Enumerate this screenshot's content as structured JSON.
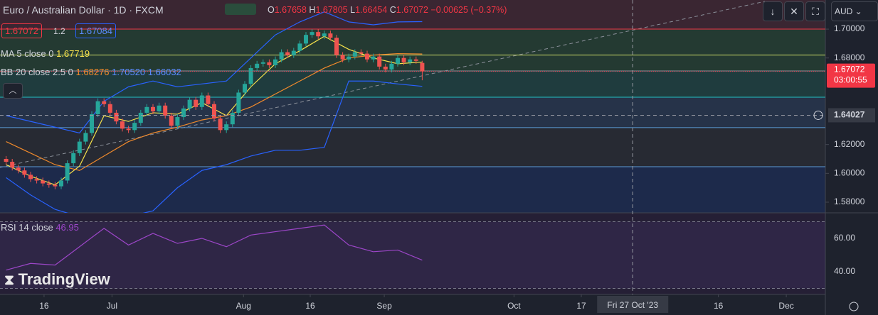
{
  "header": {
    "title": "Euro / Australian Dollar · 1D · FXCM",
    "o_label": "O",
    "o": "1.67658",
    "h_label": "H",
    "h": "1.67805",
    "l_label": "L",
    "l": "1.66454",
    "c_label": "C",
    "c": "1.67072",
    "change": "−0.00625 (−0.37%)",
    "bid": "1.67072",
    "spread": "1.2",
    "ask": "1.67084",
    "currency": "AUD"
  },
  "legend": {
    "ma_label": "MA 5 close 0",
    "ma_value": "1.67719",
    "bb_label": "BB 20 close 2.5 0",
    "bb_basis": "1.68276",
    "bb_upper": "1.70520",
    "bb_lower": "1.66032",
    "rsi_label": "RSI 14 close",
    "rsi_value": "46.95"
  },
  "brand": "TradingView",
  "chart_data": {
    "type": "candlestick",
    "xlim": [
      0,
      135
    ],
    "ylim": [
      1.5726,
      1.7202
    ],
    "open": [
      1.61,
      1.608,
      1.604,
      1.602,
      1.599,
      1.596,
      1.595,
      1.593,
      1.592,
      1.591,
      1.595,
      1.607,
      1.614,
      1.622,
      1.628,
      1.641,
      1.65,
      1.648,
      1.642,
      1.636,
      1.631,
      1.63,
      1.635,
      1.642,
      1.646,
      1.643,
      1.647,
      1.64,
      1.633,
      1.639,
      1.645,
      1.651,
      1.646,
      1.654,
      1.648,
      1.638,
      1.63,
      1.634,
      1.642,
      1.656,
      1.662,
      1.673,
      1.676,
      1.677,
      1.675,
      1.679,
      1.684,
      1.682,
      1.685,
      1.69,
      1.696,
      1.698,
      1.695,
      1.697,
      1.694,
      1.682,
      1.679,
      1.681,
      1.684,
      1.683,
      1.679,
      1.681,
      1.674,
      1.672,
      1.676,
      1.68,
      1.677,
      1.679,
      1.67658
    ],
    "high": [
      1.612,
      1.61,
      1.606,
      1.604,
      1.601,
      1.598,
      1.597,
      1.595,
      1.594,
      1.597,
      1.609,
      1.616,
      1.624,
      1.63,
      1.643,
      1.652,
      1.652,
      1.65,
      1.644,
      1.638,
      1.633,
      1.637,
      1.644,
      1.648,
      1.648,
      1.649,
      1.649,
      1.642,
      1.641,
      1.647,
      1.653,
      1.653,
      1.656,
      1.656,
      1.65,
      1.64,
      1.636,
      1.644,
      1.658,
      1.664,
      1.675,
      1.678,
      1.679,
      1.679,
      1.681,
      1.686,
      1.686,
      1.687,
      1.692,
      1.698,
      1.7,
      1.7,
      1.699,
      1.699,
      1.696,
      1.684,
      1.683,
      1.686,
      1.686,
      1.685,
      1.683,
      1.683,
      1.676,
      1.678,
      1.682,
      1.682,
      1.681,
      1.681,
      1.67805
    ],
    "low": [
      1.606,
      1.602,
      1.6,
      1.597,
      1.594,
      1.593,
      1.591,
      1.59,
      1.589,
      1.589,
      1.593,
      1.605,
      1.612,
      1.62,
      1.626,
      1.639,
      1.646,
      1.64,
      1.634,
      1.629,
      1.628,
      1.628,
      1.633,
      1.64,
      1.641,
      1.641,
      1.638,
      1.631,
      1.631,
      1.637,
      1.643,
      1.644,
      1.644,
      1.646,
      1.636,
      1.628,
      1.628,
      1.632,
      1.64,
      1.654,
      1.66,
      1.671,
      1.674,
      1.673,
      1.673,
      1.677,
      1.68,
      1.68,
      1.683,
      1.688,
      1.694,
      1.693,
      1.693,
      1.692,
      1.68,
      1.677,
      1.677,
      1.679,
      1.681,
      1.677,
      1.677,
      1.672,
      1.67,
      1.67,
      1.674,
      1.675,
      1.675,
      1.676,
      1.66454
    ],
    "close": [
      1.608,
      1.604,
      1.602,
      1.599,
      1.596,
      1.595,
      1.593,
      1.592,
      1.591,
      1.595,
      1.607,
      1.614,
      1.622,
      1.628,
      1.641,
      1.65,
      1.648,
      1.642,
      1.636,
      1.631,
      1.63,
      1.635,
      1.642,
      1.646,
      1.643,
      1.647,
      1.64,
      1.633,
      1.639,
      1.645,
      1.651,
      1.646,
      1.654,
      1.648,
      1.638,
      1.63,
      1.634,
      1.642,
      1.656,
      1.662,
      1.673,
      1.676,
      1.677,
      1.675,
      1.679,
      1.684,
      1.682,
      1.685,
      1.69,
      1.696,
      1.698,
      1.695,
      1.697,
      1.694,
      1.682,
      1.679,
      1.681,
      1.684,
      1.683,
      1.679,
      1.681,
      1.674,
      1.672,
      1.676,
      1.68,
      1.677,
      1.679,
      1.678,
      1.67072
    ],
    "up_color": "#26a69a",
    "down_color": "#ef5350",
    "line_x": [
      1,
      5,
      9,
      13,
      17,
      21,
      25,
      29,
      33,
      37,
      41,
      45,
      49,
      53,
      57,
      61,
      65,
      69
    ],
    "lines": [
      {
        "name": "ma",
        "color": "#f7e24b",
        "values": [
          1.606,
          1.598,
          1.592,
          1.605,
          1.64,
          1.636,
          1.642,
          1.641,
          1.649,
          1.64,
          1.66,
          1.676,
          1.685,
          1.695,
          1.686,
          1.68,
          1.676,
          1.67719
        ]
      },
      {
        "name": "bb-basis",
        "color": "#f08a2c",
        "values": [
          1.622,
          1.614,
          1.606,
          1.602,
          1.612,
          1.622,
          1.628,
          1.632,
          1.637,
          1.64,
          1.646,
          1.655,
          1.664,
          1.673,
          1.68,
          1.682,
          1.683,
          1.68276
        ]
      },
      {
        "name": "bb-upper",
        "color": "#2962ff",
        "values": [
          1.64,
          1.636,
          1.632,
          1.628,
          1.65,
          1.66,
          1.664,
          1.66,
          1.662,
          1.664,
          1.68,
          1.696,
          1.705,
          1.712,
          1.705,
          1.703,
          1.705,
          1.7052
        ]
      },
      {
        "name": "bb-lower",
        "color": "#2962ff",
        "values": [
          1.597,
          1.585,
          1.575,
          1.57,
          1.568,
          1.57,
          1.574,
          1.59,
          1.602,
          1.606,
          1.612,
          1.616,
          1.616,
          1.618,
          1.664,
          1.664,
          1.662,
          1.66032
        ]
      }
    ],
    "levels": [
      {
        "value": 1.7,
        "color": "#f23645"
      },
      {
        "value": 1.682,
        "color": "#c9d86a"
      },
      {
        "value": 1.671,
        "color": "#8a8f99"
      },
      {
        "value": 1.6528,
        "color": "#22c1c3"
      },
      {
        "value": 1.6317,
        "color": "#5b9bd5"
      },
      {
        "value": 1.6046,
        "color": "#5b9bd5"
      }
    ],
    "yticks": [
      {
        "value": 1.7,
        "label": "1.70000"
      },
      {
        "value": 1.68,
        "label": "1.68000"
      },
      {
        "value": 1.62,
        "label": "1.62000"
      },
      {
        "value": 1.6,
        "label": "1.60000"
      },
      {
        "value": 1.58,
        "label": "1.58000"
      }
    ],
    "last_price": {
      "value": 1.67072,
      "label": "1.67072",
      "timer": "03:00:55"
    },
    "crosshair": {
      "value": 1.64027,
      "label": "1.64027",
      "x": 103.4,
      "x_label": "Fri 27 Oct '23"
    },
    "xticks": [
      {
        "value": 7.2,
        "label": "16"
      },
      {
        "value": 18.3,
        "label": "Jul"
      },
      {
        "value": 39.8,
        "label": "Aug"
      },
      {
        "value": 50.7,
        "label": "16"
      },
      {
        "value": 62.8,
        "label": "Sep"
      },
      {
        "value": 84,
        "label": "Oct"
      },
      {
        "value": 95,
        "label": "17"
      },
      {
        "value": 117.4,
        "label": "16"
      },
      {
        "value": 128.5,
        "label": "Dec"
      }
    ],
    "rsi": {
      "ylim": [
        26.4,
        75.3
      ],
      "color": "#9c46c8",
      "values": [
        41,
        45,
        44,
        55,
        66,
        56,
        63,
        57,
        60,
        55,
        62,
        64,
        66,
        68,
        56,
        52,
        53,
        46.95
      ],
      "levels": [
        70,
        30
      ],
      "yticks": [
        {
          "value": 60,
          "label": "60.00"
        },
        {
          "value": 40,
          "label": "40.00"
        }
      ]
    }
  }
}
